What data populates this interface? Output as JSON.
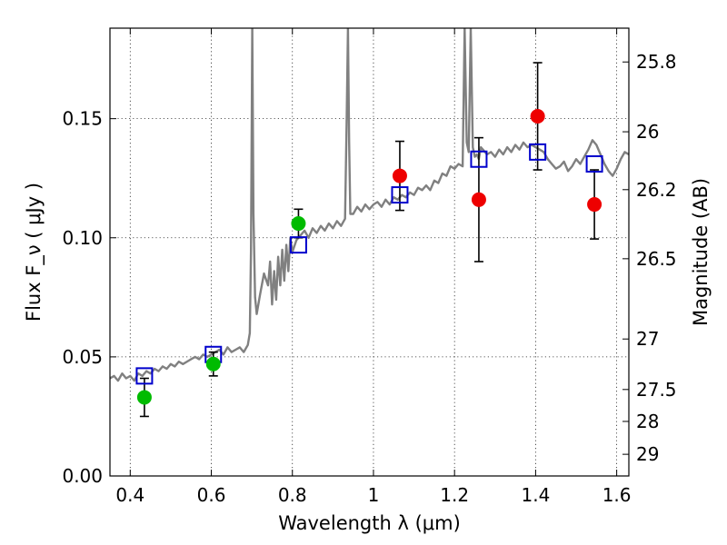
{
  "chart_data": {
    "type": "scatter",
    "xlabel": "Wavelength  λ (μm)",
    "ylabel": "Flux  F_ν  ( μJy )",
    "ylabel_right": "Magnitude (AB)",
    "xlim": [
      0.35,
      1.63
    ],
    "ylim": [
      0.0,
      0.188
    ],
    "grid": true,
    "x_ticks": [
      0.4,
      0.6,
      0.8,
      1.0,
      1.2,
      1.4,
      1.6
    ],
    "x_tick_labels": [
      "0.4",
      "0.6",
      "0.8",
      "1",
      "1.2",
      "1.4",
      "1.6"
    ],
    "y_ticks": [
      0.0,
      0.05,
      0.1,
      0.15
    ],
    "y_tick_labels": [
      "0.00",
      "0.05",
      "0.10",
      "0.15"
    ],
    "right_ticks": [
      {
        "label": "25.8",
        "flux": 0.1738
      },
      {
        "label": "26",
        "flux": 0.1445
      },
      {
        "label": "26.2",
        "flux": 0.1202
      },
      {
        "label": "26.5",
        "flux": 0.0912
      },
      {
        "label": "27",
        "flux": 0.0575
      },
      {
        "label": "27.5",
        "flux": 0.0363
      },
      {
        "label": "28",
        "flux": 0.0229
      },
      {
        "label": "29",
        "flux": 0.0091
      }
    ],
    "series": [
      {
        "kind": "spectrum",
        "color": "#808080",
        "x": [
          0.35,
          0.36,
          0.37,
          0.38,
          0.39,
          0.4,
          0.41,
          0.42,
          0.43,
          0.44,
          0.45,
          0.46,
          0.47,
          0.48,
          0.49,
          0.5,
          0.51,
          0.52,
          0.53,
          0.54,
          0.55,
          0.56,
          0.57,
          0.58,
          0.59,
          0.6,
          0.61,
          0.62,
          0.63,
          0.64,
          0.65,
          0.66,
          0.67,
          0.68,
          0.69,
          0.695,
          0.698,
          0.701,
          0.704,
          0.708,
          0.712,
          0.72,
          0.73,
          0.74,
          0.745,
          0.75,
          0.755,
          0.76,
          0.765,
          0.77,
          0.775,
          0.78,
          0.785,
          0.79,
          0.795,
          0.8,
          0.81,
          0.82,
          0.83,
          0.84,
          0.85,
          0.86,
          0.87,
          0.88,
          0.89,
          0.9,
          0.91,
          0.92,
          0.93,
          0.934,
          0.937,
          0.94,
          0.943,
          0.95,
          0.96,
          0.97,
          0.98,
          0.99,
          1.0,
          1.01,
          1.02,
          1.03,
          1.04,
          1.05,
          1.06,
          1.07,
          1.08,
          1.09,
          1.1,
          1.11,
          1.12,
          1.13,
          1.14,
          1.15,
          1.16,
          1.17,
          1.18,
          1.19,
          1.2,
          1.21,
          1.22,
          1.225,
          1.23,
          1.235,
          1.24,
          1.245,
          1.25,
          1.255,
          1.26,
          1.265,
          1.27,
          1.28,
          1.29,
          1.3,
          1.31,
          1.32,
          1.33,
          1.34,
          1.35,
          1.36,
          1.37,
          1.38,
          1.39,
          1.4,
          1.41,
          1.42,
          1.43,
          1.44,
          1.45,
          1.46,
          1.47,
          1.48,
          1.49,
          1.5,
          1.51,
          1.52,
          1.53,
          1.54,
          1.55,
          1.56,
          1.57,
          1.58,
          1.59,
          1.6,
          1.61,
          1.62,
          1.63
        ],
        "y": [
          0.041,
          0.042,
          0.04,
          0.043,
          0.041,
          0.042,
          0.04,
          0.043,
          0.042,
          0.044,
          0.043,
          0.045,
          0.044,
          0.046,
          0.045,
          0.047,
          0.046,
          0.048,
          0.047,
          0.048,
          0.049,
          0.05,
          0.049,
          0.051,
          0.05,
          0.051,
          0.052,
          0.053,
          0.051,
          0.054,
          0.052,
          0.053,
          0.054,
          0.052,
          0.055,
          0.06,
          0.095,
          0.188,
          0.11,
          0.075,
          0.068,
          0.076,
          0.085,
          0.08,
          0.09,
          0.072,
          0.086,
          0.074,
          0.092,
          0.08,
          0.095,
          0.082,
          0.097,
          0.086,
          0.1,
          0.094,
          0.099,
          0.101,
          0.103,
          0.1,
          0.104,
          0.102,
          0.105,
          0.103,
          0.106,
          0.104,
          0.107,
          0.105,
          0.108,
          0.15,
          0.188,
          0.14,
          0.11,
          0.11,
          0.113,
          0.111,
          0.114,
          0.112,
          0.114,
          0.115,
          0.113,
          0.116,
          0.114,
          0.117,
          0.116,
          0.118,
          0.117,
          0.119,
          0.118,
          0.121,
          0.12,
          0.122,
          0.12,
          0.124,
          0.123,
          0.127,
          0.126,
          0.13,
          0.129,
          0.131,
          0.13,
          0.188,
          0.14,
          0.136,
          0.188,
          0.138,
          0.134,
          0.135,
          0.133,
          0.138,
          0.137,
          0.135,
          0.136,
          0.134,
          0.137,
          0.135,
          0.138,
          0.136,
          0.139,
          0.137,
          0.14,
          0.138,
          0.139,
          0.138,
          0.137,
          0.136,
          0.133,
          0.131,
          0.129,
          0.13,
          0.132,
          0.128,
          0.13,
          0.133,
          0.131,
          0.134,
          0.137,
          0.141,
          0.139,
          0.135,
          0.131,
          0.128,
          0.126,
          0.129,
          0.133,
          0.136,
          0.135
        ]
      },
      {
        "kind": "model-points",
        "marker": "square",
        "color": "#0000cc",
        "x": [
          0.435,
          0.605,
          0.815,
          1.065,
          1.26,
          1.405,
          1.545
        ],
        "y": [
          0.042,
          0.051,
          0.097,
          0.118,
          0.133,
          0.136,
          0.131
        ]
      },
      {
        "kind": "observed-green",
        "marker": "circle",
        "color": "#00bb00",
        "x": [
          0.435,
          0.605,
          0.815
        ],
        "y": [
          0.033,
          0.047,
          0.106
        ],
        "yerr": [
          0.008,
          0.005,
          0.006
        ]
      },
      {
        "kind": "observed-red",
        "marker": "circle",
        "color": "#ee0000",
        "x": [
          1.065,
          1.26,
          1.405,
          1.545
        ],
        "y": [
          0.126,
          0.116,
          0.151,
          0.114
        ],
        "yerr": [
          0.0145,
          0.026,
          0.0225,
          0.0145
        ]
      }
    ]
  }
}
